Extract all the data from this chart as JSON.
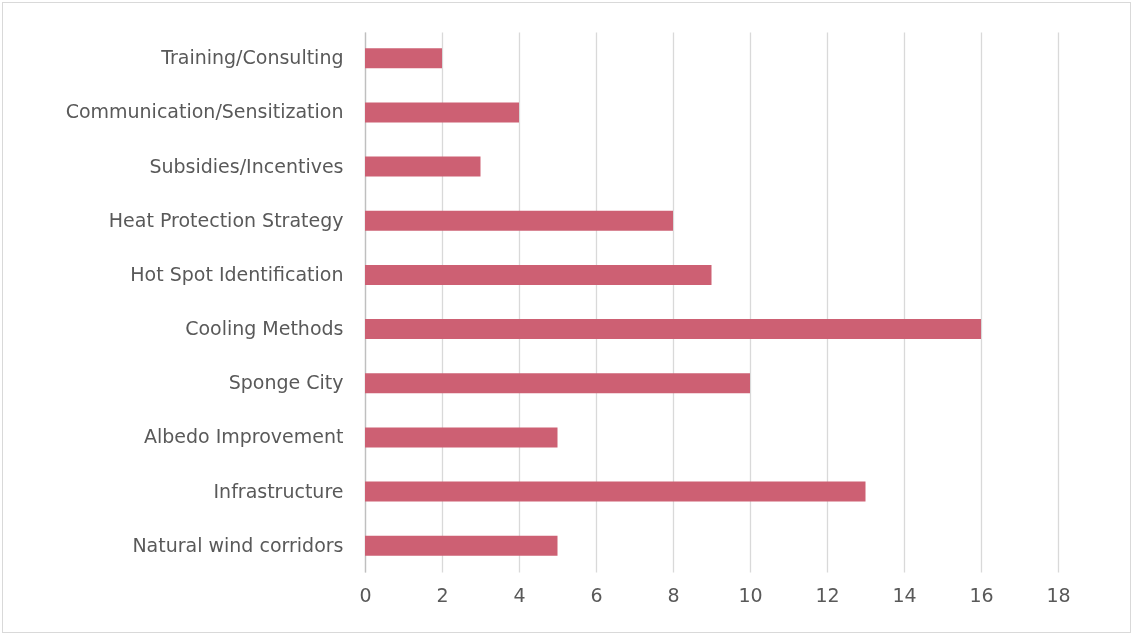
{
  "chart_data": {
    "type": "bar",
    "orientation": "horizontal",
    "categories": [
      "Training/Consulting",
      "Communication/Sensitization",
      "Subsidies/Incentives",
      "Heat Protection Strategy",
      "Hot Spot Identification",
      "Cooling Methods",
      "Sponge City",
      "Albedo Improvement",
      "Infrastructure",
      "Natural wind corridors"
    ],
    "values": [
      2,
      4,
      3,
      8,
      9,
      16,
      10,
      5,
      13,
      5
    ],
    "color": "#cd6073",
    "xlim": [
      0,
      18
    ],
    "xticks": [
      0,
      2,
      4,
      6,
      8,
      10,
      12,
      14,
      16,
      18
    ],
    "grid": "x"
  }
}
